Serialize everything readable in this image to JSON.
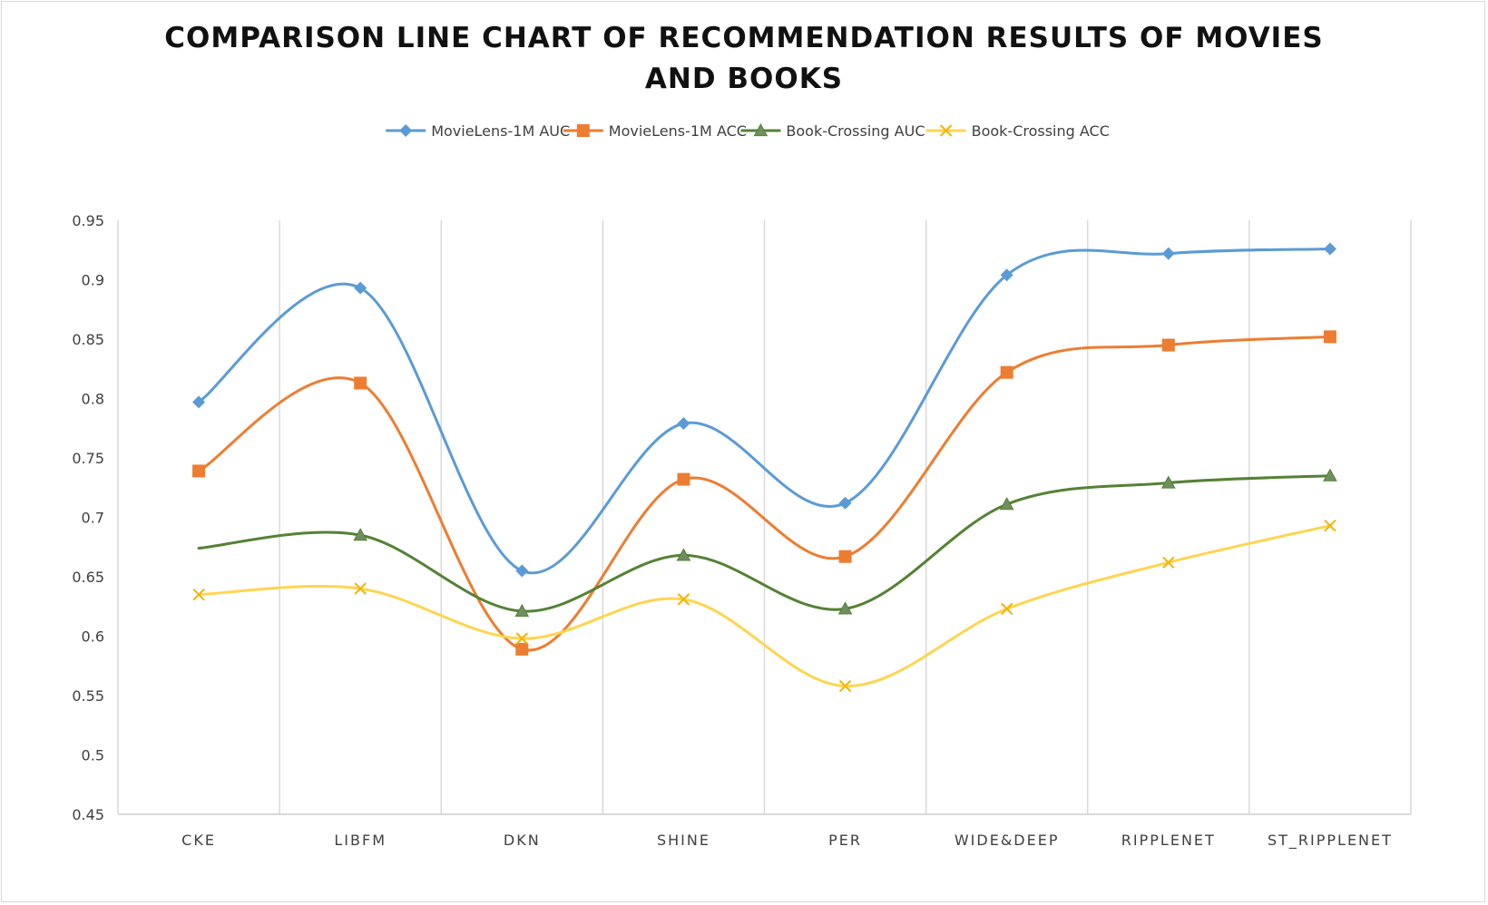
{
  "chart_data": {
    "type": "line",
    "title": "COMPARISON LINE CHART OF RECOMMENDATION RESULTS OF MOVIES AND BOOKS",
    "title_lines": [
      "COMPARISON LINE CHART OF RECOMMENDATION RESULTS OF MOVIES",
      "AND BOOKS"
    ],
    "xlabel": "",
    "ylabel": "",
    "categories": [
      "CKE",
      "LIBFM",
      "DKN",
      "SHINE",
      "PER",
      "WIDE&DEEP",
      "RIPPLENET",
      "ST_RIPPLENET"
    ],
    "ylim": [
      0.45,
      0.95
    ],
    "yticks": [
      0.95,
      0.9,
      0.85,
      0.8,
      0.75,
      0.7,
      0.65,
      0.6,
      0.55,
      0.5,
      0.45
    ],
    "ytick_labels": [
      "0.95",
      "0.9",
      "0.85",
      "0.8",
      "0.75",
      "0.7",
      "0.65",
      "0.6",
      "0.55",
      "0.5",
      "0.45"
    ],
    "grid": "vertical",
    "smooth": true,
    "legend_position": "top-center",
    "series": [
      {
        "name": "MovieLens-1M AUC",
        "color": "#5B9BD5",
        "marker": "diamond",
        "values": [
          0.797,
          0.893,
          0.655,
          0.779,
          0.712,
          0.904,
          0.922,
          0.926
        ]
      },
      {
        "name": "MovieLens-1M ACC",
        "color": "#ED7D31",
        "marker": "square",
        "values": [
          0.739,
          0.813,
          0.589,
          0.732,
          0.667,
          0.822,
          0.845,
          0.852
        ]
      },
      {
        "name": "Book-Crossing AUC",
        "color": "#548235",
        "marker": "triangle",
        "values": [
          0.674,
          0.685,
          0.621,
          0.668,
          0.623,
          0.711,
          0.729,
          0.735
        ],
        "hidden_markers": [
          0
        ]
      },
      {
        "name": "Book-Crossing ACC",
        "color": "#FFD54F",
        "marker": "x",
        "values": [
          0.635,
          0.64,
          0.598,
          0.631,
          0.558,
          0.623,
          0.662,
          0.693
        ]
      }
    ]
  }
}
